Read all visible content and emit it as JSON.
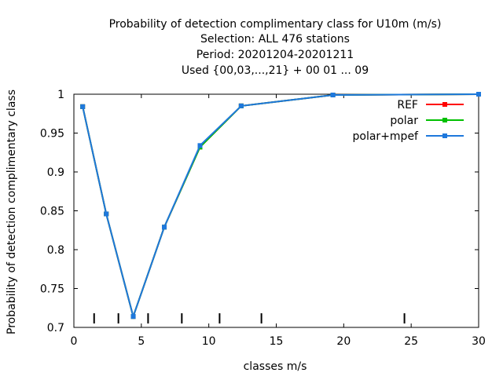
{
  "chart_data": {
    "type": "line",
    "title_lines": [
      "Probability of detection complimentary class  for U10m (m/s)",
      "Selection: ALL    476 stations",
      "Period: 20201204-20201211",
      "Used {00,03,...,21} + 00 01 ... 09"
    ],
    "xlabel": "classes m/s",
    "ylabel": "Probability of detection complimentary class",
    "xlim": [
      0,
      30
    ],
    "ylim": [
      0.7,
      1.0
    ],
    "x_ticks": [
      0,
      5,
      10,
      15,
      20,
      25,
      30
    ],
    "y_ticks": [
      0.7,
      0.75,
      0.8,
      0.85,
      0.9,
      0.95,
      1.0
    ],
    "x_tick_labels": [
      "0",
      "5",
      "10",
      "15",
      "20",
      "25",
      "30"
    ],
    "y_tick_labels": [
      "0.7",
      "0.75",
      "0.8",
      "0.85",
      "0.9",
      "0.95",
      "1"
    ],
    "class_boundaries": [
      1.5,
      3.3,
      5.5,
      8.0,
      10.8,
      13.9,
      24.5
    ],
    "legend_position": "top-right",
    "grid": false,
    "series": [
      {
        "name": "REF",
        "color": "#ff0000",
        "x": [
          0.65,
          2.4,
          4.4,
          6.7,
          9.35,
          12.4,
          19.2,
          30
        ],
        "y": [
          0.984,
          0.846,
          0.714,
          0.829,
          0.932,
          0.985,
          0.999,
          1.0
        ]
      },
      {
        "name": "polar",
        "color": "#00c000",
        "x": [
          0.65,
          2.4,
          4.4,
          6.7,
          9.35,
          12.4,
          19.2,
          30
        ],
        "y": [
          0.984,
          0.846,
          0.714,
          0.829,
          0.932,
          0.985,
          0.999,
          1.0
        ]
      },
      {
        "name": "polar+mpef",
        "color": "#1e78dc",
        "x": [
          0.65,
          2.4,
          4.4,
          6.7,
          9.35,
          12.4,
          19.2,
          30
        ],
        "y": [
          0.984,
          0.846,
          0.714,
          0.829,
          0.934,
          0.985,
          0.999,
          1.0
        ]
      }
    ]
  }
}
